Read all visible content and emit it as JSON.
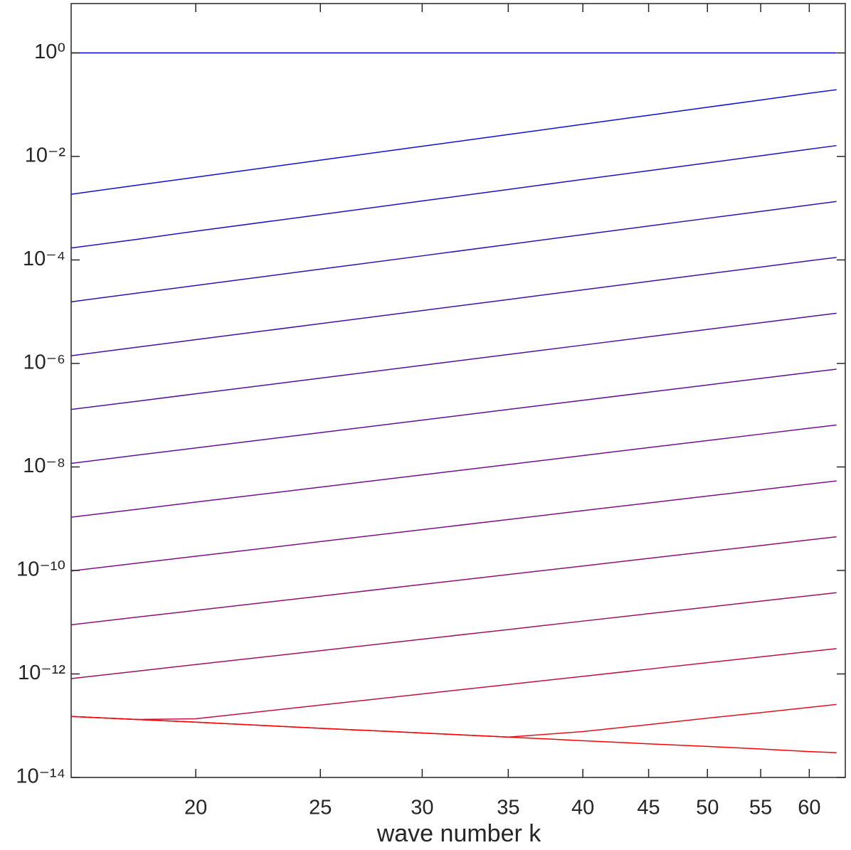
{
  "chart_data": {
    "type": "line",
    "x_label": "wave number k",
    "xscale": "log",
    "yscale": "log",
    "xlim": [
      16,
      64
    ],
    "ylim": [
      1e-14,
      9
    ],
    "xticks": [
      20,
      25,
      30,
      35,
      40,
      45,
      50,
      55,
      60
    ],
    "yticks": [
      {
        "value": 1,
        "label": "10⁰"
      },
      {
        "value": 0.01,
        "label": "10⁻²"
      },
      {
        "value": 0.0001,
        "label": "10⁻⁴"
      },
      {
        "value": 1e-06,
        "label": "10⁻⁶"
      },
      {
        "value": 1e-08,
        "label": "10⁻⁸"
      },
      {
        "value": 1e-10,
        "label": "10⁻¹⁰"
      },
      {
        "value": 1e-12,
        "label": "10⁻¹²"
      },
      {
        "value": 1e-14,
        "label": "10⁻¹⁴"
      }
    ],
    "x": [
      16,
      18,
      20,
      25,
      30,
      35,
      40,
      45,
      50,
      55,
      60,
      63
    ],
    "series": [
      {
        "color": "#0000ee",
        "values": [
          1,
          1,
          1,
          1,
          1,
          1,
          1,
          1,
          1,
          1,
          1,
          1
        ]
      },
      {
        "color": "#1010d0",
        "values": [
          0.00186,
          0.00278,
          0.00397,
          0.0085,
          0.0157,
          0.0265,
          0.0418,
          0.0624,
          0.0893,
          0.123,
          0.166,
          0.195
        ]
      },
      {
        "color": "#2010c0",
        "values": [
          0.00017,
          0.00025,
          0.00036,
          0.00075,
          0.00138,
          0.0023,
          0.0036,
          0.0053,
          0.0075,
          0.0103,
          0.0138,
          0.0162
        ]
      },
      {
        "color": "#3010b0",
        "values": [
          1.55e-05,
          2.28e-05,
          3.21e-05,
          6.64e-05,
          0.00012,
          0.000199,
          0.000308,
          0.000452,
          0.000637,
          0.000867,
          0.00115,
          0.00135
        ]
      },
      {
        "color": "#4010a8",
        "values": [
          1.41e-06,
          2.06e-06,
          2.88e-06,
          5.87e-06,
          1.05e-05,
          1.72e-05,
          2.64e-05,
          3.85e-05,
          5.38e-05,
          7.28e-05,
          9.64e-05,
          0.000112
        ]
      },
      {
        "color": "#5010a0",
        "values": [
          1.29e-07,
          1.86e-07,
          2.59e-07,
          5.2e-07,
          9.2e-07,
          1.49e-06,
          2.26e-06,
          3.27e-06,
          4.55e-06,
          6.11e-06,
          8.04e-06,
          9.33e-06
        ]
      },
      {
        "color": "#601098",
        "values": [
          1.17e-08,
          1.69e-08,
          2.33e-08,
          4.6e-08,
          8.04e-08,
          1.29e-07,
          1.94e-07,
          2.78e-07,
          3.84e-07,
          5.13e-07,
          6.7e-07,
          7.76e-07
        ]
      },
      {
        "color": "#701090",
        "values": [
          1.07e-09,
          1.52e-09,
          2.09e-09,
          4.07e-09,
          7.03e-09,
          1.11e-08,
          1.66e-08,
          2.37e-08,
          3.24e-08,
          4.31e-08,
          5.6e-08,
          6.46e-08
        ]
      },
      {
        "color": "#801080",
        "values": [
          9.77e-11,
          1.38e-10,
          1.88e-10,
          3.61e-10,
          6.15e-10,
          9.64e-10,
          1.43e-09,
          2.01e-09,
          2.74e-09,
          3.61e-09,
          4.67e-09,
          5.37e-09
        ]
      },
      {
        "color": "#901070",
        "values": [
          8.91e-12,
          1.25e-11,
          1.69e-11,
          3.19e-11,
          5.37e-11,
          8.34e-11,
          1.22e-10,
          1.71e-10,
          2.31e-10,
          3.03e-10,
          3.9e-10,
          4.47e-10
        ]
      },
      {
        "color": "#a01060",
        "values": [
          8.13e-13,
          1.13e-12,
          1.52e-12,
          2.82e-12,
          4.7e-12,
          7.21e-12,
          1.05e-11,
          1.46e-11,
          1.95e-11,
          2.55e-11,
          3.25e-11,
          3.72e-11
        ]
      },
      {
        "color": "#c01040",
        "values": [
          1.51e-13,
          1.32e-13,
          1.36e-13,
          2.5e-13,
          4.11e-13,
          6.24e-13,
          8.99e-13,
          1.24e-12,
          1.65e-12,
          2.14e-12,
          2.71e-12,
          3.09e-12
        ]
      },
      {
        "color": "#e01020",
        "values": [
          1.51e-13,
          1.32e-13,
          1.17e-13,
          8.91e-14,
          7.24e-14,
          6.03e-14,
          7.71e-14,
          1.05e-13,
          1.4e-13,
          1.79e-13,
          2.26e-13,
          2.57e-13
        ]
      },
      {
        "color": "#ff0000",
        "values": [
          1.51e-13,
          1.32e-13,
          1.17e-13,
          8.91e-14,
          7.24e-14,
          6.03e-14,
          5.13e-14,
          4.47e-14,
          3.98e-14,
          3.55e-14,
          3.16e-14,
          3.02e-14
        ]
      }
    ]
  }
}
